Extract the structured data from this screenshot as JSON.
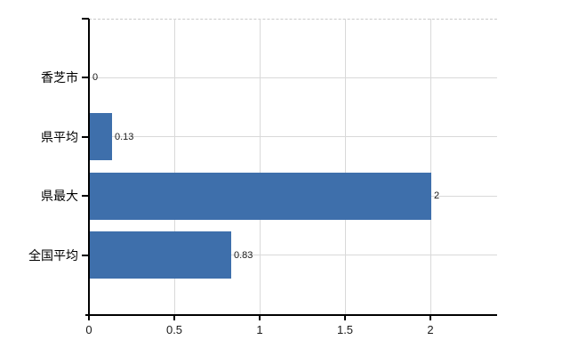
{
  "chart_data": {
    "type": "bar",
    "orientation": "horizontal",
    "categories": [
      "香芝市",
      "県平均",
      "県最大",
      "全国平均"
    ],
    "values": [
      0,
      0.13,
      2,
      0.83
    ],
    "value_labels": [
      "0",
      "0.13",
      "2",
      "0.83"
    ],
    "x_ticks": [
      0,
      0.5,
      1,
      1.5,
      2
    ],
    "x_tick_labels": [
      "0",
      "0.5",
      "1",
      "1.5",
      "2"
    ],
    "xlim": [
      0,
      2.39
    ],
    "grid": true,
    "legend_position": "none",
    "colors": {
      "bar": "#3e6fab",
      "gridline": "#d9d9d9",
      "plot_top_border": "#c9c9c9",
      "axis": "#000000",
      "category_text": "#000000",
      "value_text": "#1a1a1a",
      "background": "#ffffff"
    }
  }
}
